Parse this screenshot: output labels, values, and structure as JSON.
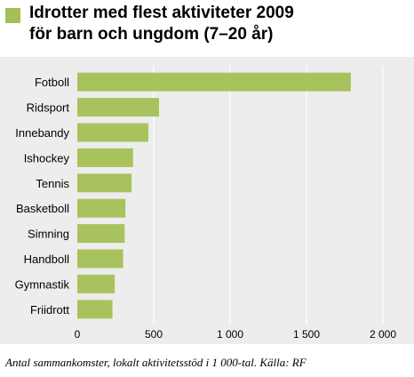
{
  "title": {
    "line1": "Idrotter med flest aktiviteter 2009",
    "line2": "för barn och ungdom (7–20 år)"
  },
  "colors": {
    "bar": "#a8c35e",
    "marker": "#a5be55",
    "panel": "#ededed",
    "grid": "#ffffff"
  },
  "chart_data": {
    "type": "bar",
    "orientation": "horizontal",
    "categories": [
      "Fotboll",
      "Ridsport",
      "Innebandy",
      "Ishockey",
      "Tennis",
      "Basketboll",
      "Simning",
      "Handboll",
      "Gymnastik",
      "Friidrott"
    ],
    "values": [
      1790,
      535,
      465,
      365,
      355,
      315,
      310,
      300,
      245,
      230
    ],
    "xlim": [
      0,
      2000
    ],
    "xticks": [
      0,
      500,
      1000,
      1500,
      2000
    ],
    "xtick_labels": [
      "0",
      "500",
      "1 000",
      "1 500",
      "2 000"
    ],
    "grid": true,
    "title": "Idrotter med flest aktiviteter 2009 för barn och ungdom (7–20 år)"
  },
  "footnote": "Antal sammankomster, lokalt aktivitetsstöd i 1 000-tal. Källa: RF"
}
